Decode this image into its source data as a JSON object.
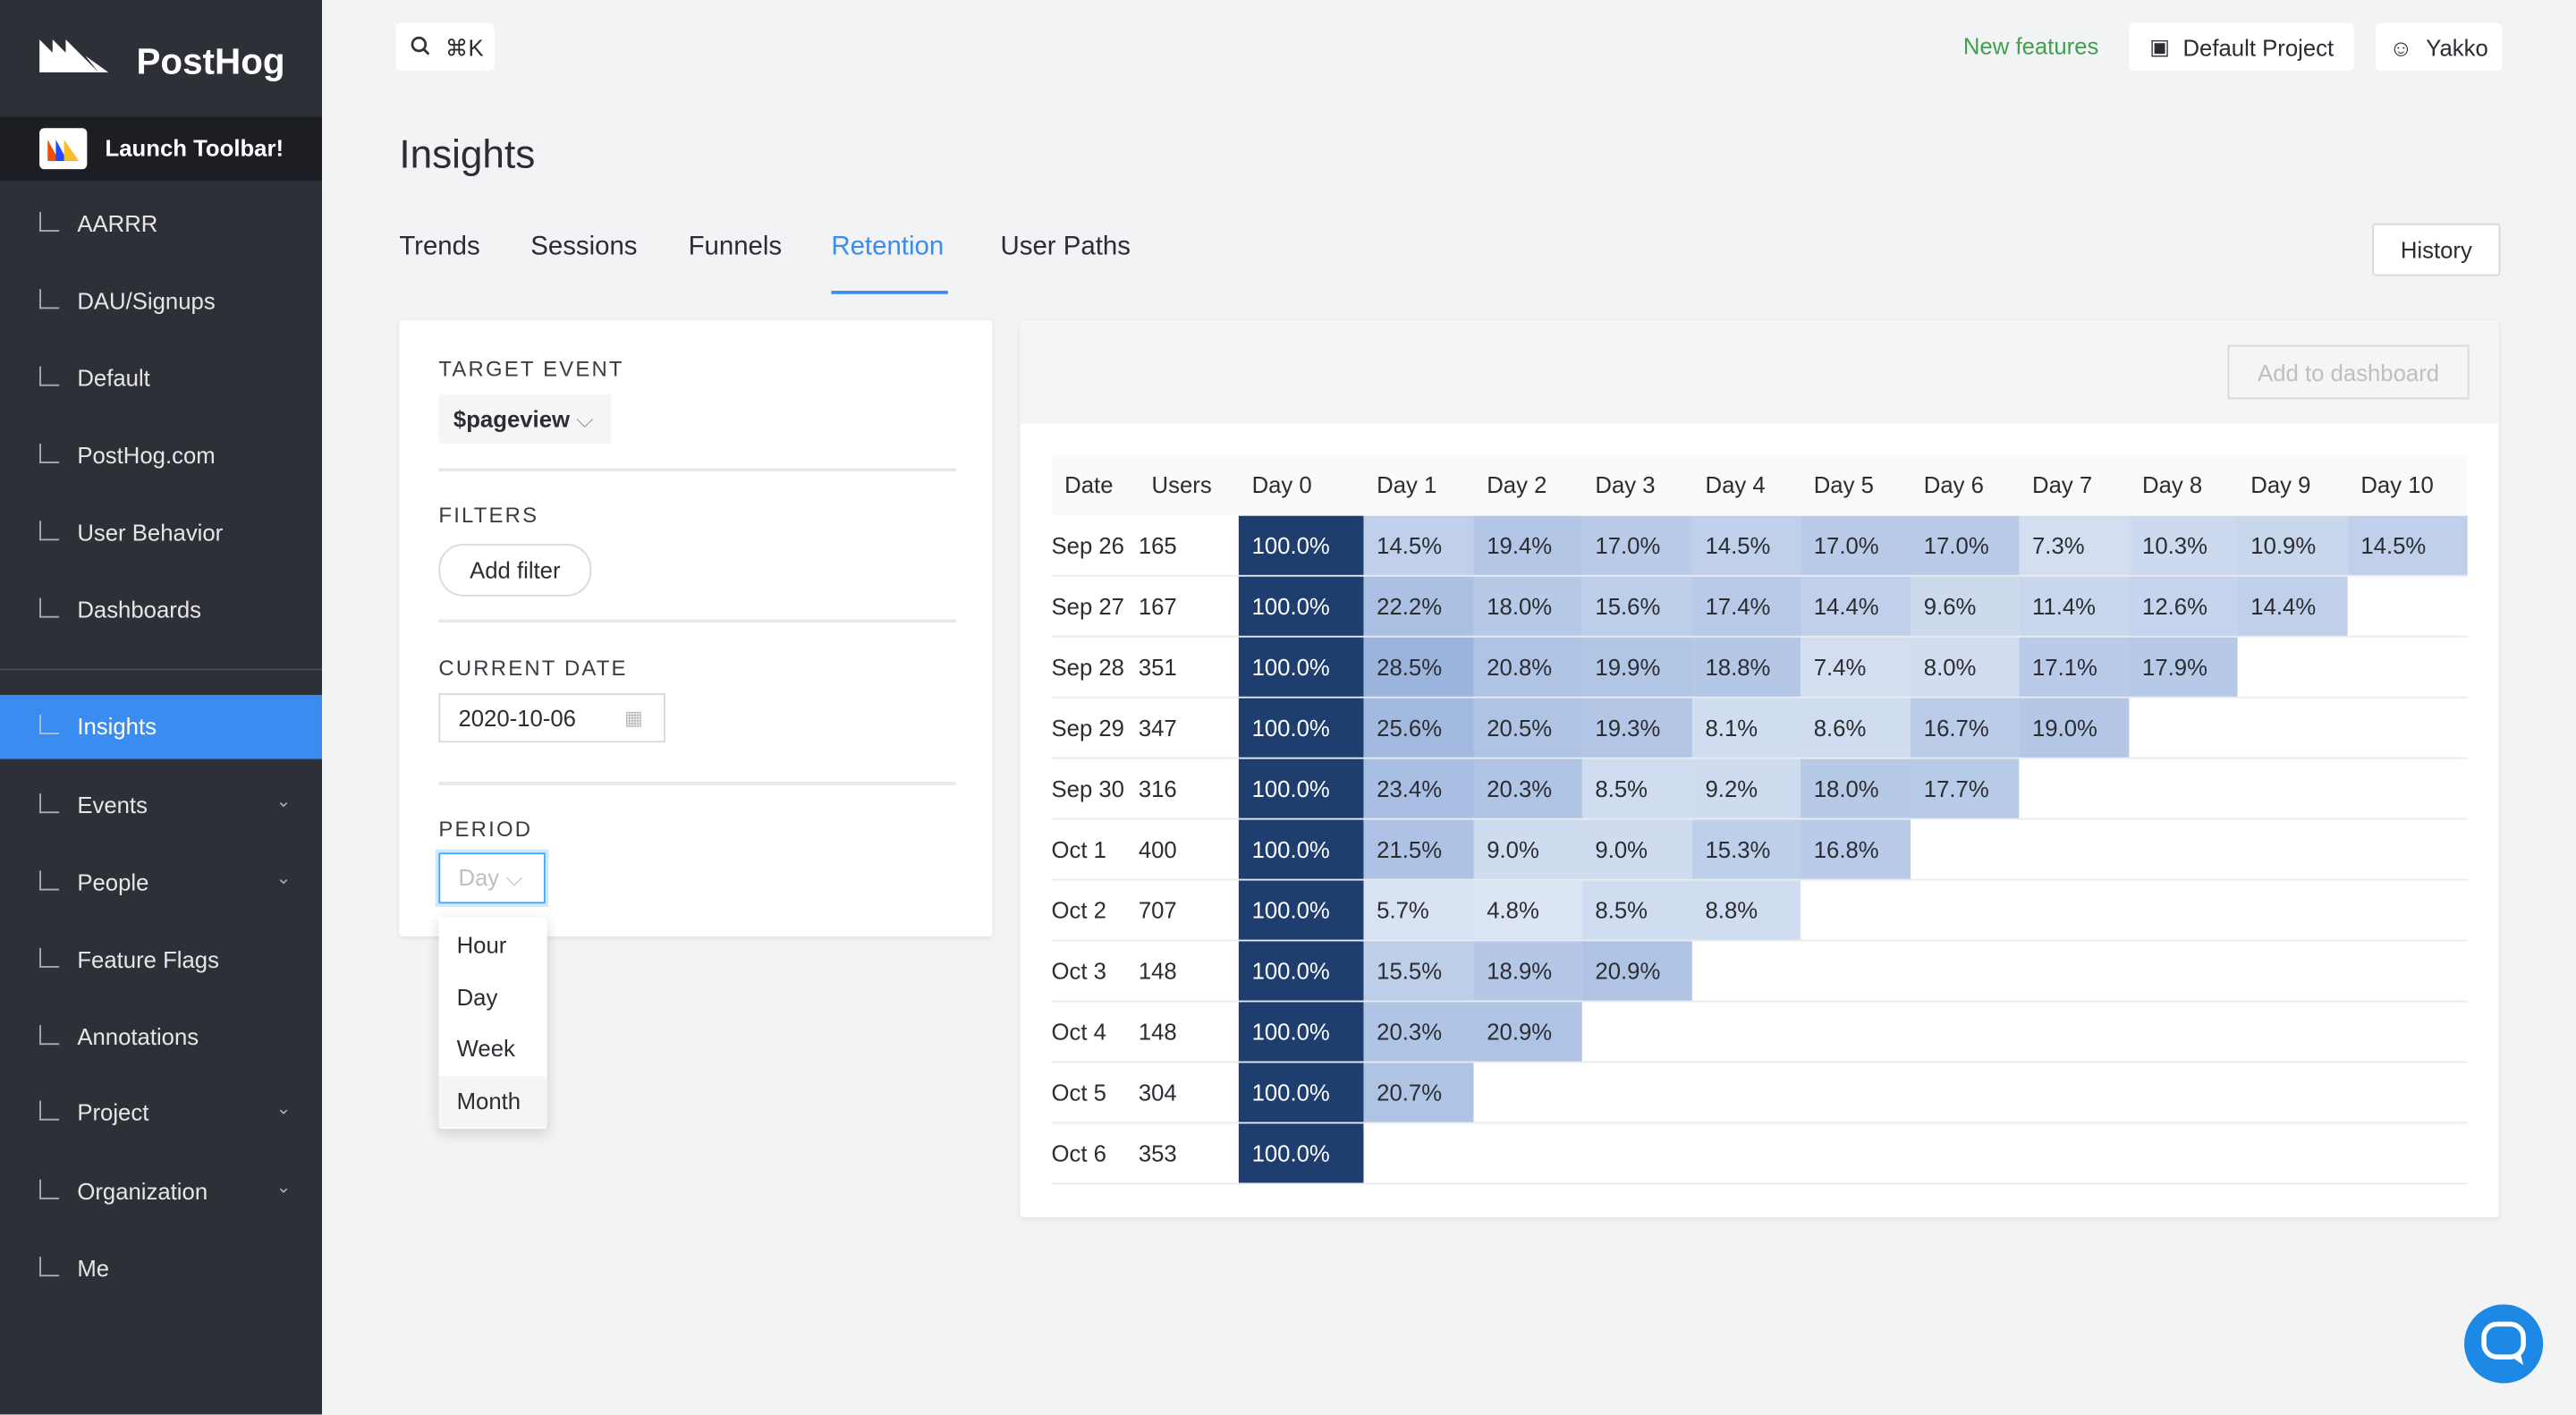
{
  "sidebar": {
    "brand": "PostHog",
    "launch": "Launch Toolbar!",
    "items": [
      "AARRR",
      "DAU/Signups",
      "Default",
      "PostHog.com",
      "User Behavior",
      "Dashboards",
      "Insights",
      "Events",
      "People",
      "Feature Flags",
      "Annotations",
      "Project",
      "Organization",
      "Me"
    ]
  },
  "topbar": {
    "search": "⌘K",
    "new_features": "New features",
    "project": "Default Project",
    "user": "Yakko"
  },
  "header": {
    "title": "Insights",
    "tabs": [
      "Trends",
      "Sessions",
      "Funnels",
      "Retention",
      "User Paths"
    ],
    "history": "History"
  },
  "panel": {
    "target_label": "TARGET EVENT",
    "target_value": "$pageview",
    "filters_label": "FILTERS",
    "add_filter": "Add filter",
    "date_label": "CURRENT DATE",
    "date_value": "2020-10-06",
    "period_label": "PERIOD",
    "period_value": "Day",
    "period_options": [
      "Hour",
      "Day",
      "Week",
      "Month"
    ]
  },
  "retention": {
    "add_to_dashboard": "Add to dashboard",
    "headers": [
      "Date",
      "Users",
      "Day 0",
      "Day 1",
      "Day 2",
      "Day 3",
      "Day 4",
      "Day 5",
      "Day 6",
      "Day 7",
      "Day 8",
      "Day 9",
      "Day 10"
    ],
    "rows": [
      [
        "Sep 26",
        "165",
        "100.0%",
        "14.5%",
        "19.4%",
        "17.0%",
        "14.5%",
        "17.0%",
        "17.0%",
        "7.3%",
        "10.3%",
        "10.9%",
        "14.5%"
      ],
      [
        "Sep 27",
        "167",
        "100.0%",
        "22.2%",
        "18.0%",
        "15.6%",
        "17.4%",
        "14.4%",
        "9.6%",
        "11.4%",
        "12.6%",
        "14.4%"
      ],
      [
        "Sep 28",
        "351",
        "100.0%",
        "28.5%",
        "20.8%",
        "19.9%",
        "18.8%",
        "7.4%",
        "8.0%",
        "17.1%",
        "17.9%"
      ],
      [
        "Sep 29",
        "347",
        "100.0%",
        "25.6%",
        "20.5%",
        "19.3%",
        "8.1%",
        "8.6%",
        "16.7%",
        "19.0%"
      ],
      [
        "Sep 30",
        "316",
        "100.0%",
        "23.4%",
        "20.3%",
        "8.5%",
        "9.2%",
        "18.0%",
        "17.7%"
      ],
      [
        "Oct 1",
        "400",
        "100.0%",
        "21.5%",
        "9.0%",
        "9.0%",
        "15.3%",
        "16.8%"
      ],
      [
        "Oct 2",
        "707",
        "100.0%",
        "5.7%",
        "4.8%",
        "8.5%",
        "8.8%"
      ],
      [
        "Oct 3",
        "148",
        "100.0%",
        "15.5%",
        "18.9%",
        "20.9%"
      ],
      [
        "Oct 4",
        "148",
        "100.0%",
        "20.3%",
        "20.9%"
      ],
      [
        "Oct 5",
        "304",
        "100.0%",
        "20.7%"
      ],
      [
        "Oct 6",
        "353",
        "100.0%"
      ]
    ]
  }
}
